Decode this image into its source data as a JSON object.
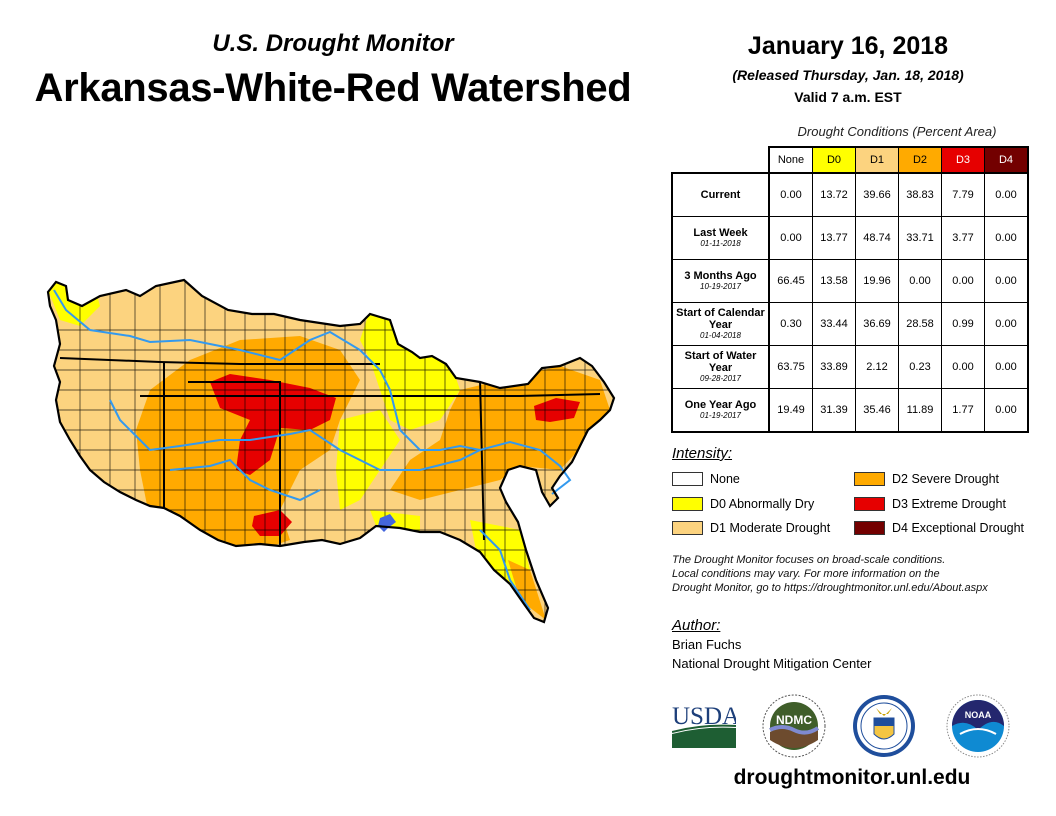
{
  "header": {
    "supertitle": "U.S. Drought Monitor",
    "title": "Arkansas-White-Red Watershed",
    "date": "January 16, 2018",
    "released": "(Released Thursday, Jan. 18, 2018)",
    "valid": "Valid 7 a.m. EST"
  },
  "table": {
    "title": "Drought Conditions (Percent Area)",
    "columns": [
      {
        "label": "None",
        "color": "#ffffff",
        "text_color": "#000000"
      },
      {
        "label": "D0",
        "color": "#ffff00",
        "text_color": "#000000"
      },
      {
        "label": "D1",
        "color": "#fcd37f",
        "text_color": "#000000"
      },
      {
        "label": "D2",
        "color": "#ffaa00",
        "text_color": "#000000"
      },
      {
        "label": "D3",
        "color": "#e60000",
        "text_color": "#ffffff"
      },
      {
        "label": "D4",
        "color": "#730000",
        "text_color": "#ffffff"
      }
    ],
    "rows": [
      {
        "label": "Current",
        "date": "",
        "values": [
          "0.00",
          "13.72",
          "39.66",
          "38.83",
          "7.79",
          "0.00"
        ]
      },
      {
        "label": "Last Week",
        "date": "01-11-2018",
        "values": [
          "0.00",
          "13.77",
          "48.74",
          "33.71",
          "3.77",
          "0.00"
        ]
      },
      {
        "label": "3 Months Ago",
        "date": "10-19-2017",
        "values": [
          "66.45",
          "13.58",
          "19.96",
          "0.00",
          "0.00",
          "0.00"
        ]
      },
      {
        "label": "Start of Calendar Year",
        "date": "01-04-2018",
        "values": [
          "0.30",
          "33.44",
          "36.69",
          "28.58",
          "0.99",
          "0.00"
        ]
      },
      {
        "label": "Start of Water Year",
        "date": "09-28-2017",
        "values": [
          "63.75",
          "33.89",
          "2.12",
          "0.23",
          "0.00",
          "0.00"
        ]
      },
      {
        "label": "One Year Ago",
        "date": "01-19-2017",
        "values": [
          "19.49",
          "31.39",
          "35.46",
          "11.89",
          "1.77",
          "0.00"
        ]
      }
    ]
  },
  "legend": {
    "title": "Intensity:",
    "items": [
      {
        "label": "None",
        "color": "#ffffff"
      },
      {
        "label": "D0 Abnormally Dry",
        "color": "#ffff00"
      },
      {
        "label": "D1 Moderate Drought",
        "color": "#fcd37f"
      },
      {
        "label": "D2 Severe Drought",
        "color": "#ffaa00"
      },
      {
        "label": "D3 Extreme Drought",
        "color": "#e60000"
      },
      {
        "label": "D4 Exceptional Drought",
        "color": "#730000"
      }
    ]
  },
  "note": {
    "line1": "The Drought Monitor focuses on broad-scale conditions.",
    "line2": "Local conditions may vary. For more information on the",
    "line3": "Drought Monitor, go to https://droughtmonitor.unl.edu/About.aspx"
  },
  "author": {
    "title": "Author:",
    "name": "Brian Fuchs",
    "org": "National Drought Mitigation Center"
  },
  "logos": {
    "usda": "USDA",
    "ndmc": "NDMC",
    "noaa": "NOAA"
  },
  "site": "droughtmonitor.unl.edu",
  "map": {
    "colors": {
      "d0": "#ffff00",
      "d1": "#fcd37f",
      "d2": "#ffaa00",
      "d3": "#e60000",
      "river": "#3399ee",
      "lake": "#4466dd"
    }
  }
}
